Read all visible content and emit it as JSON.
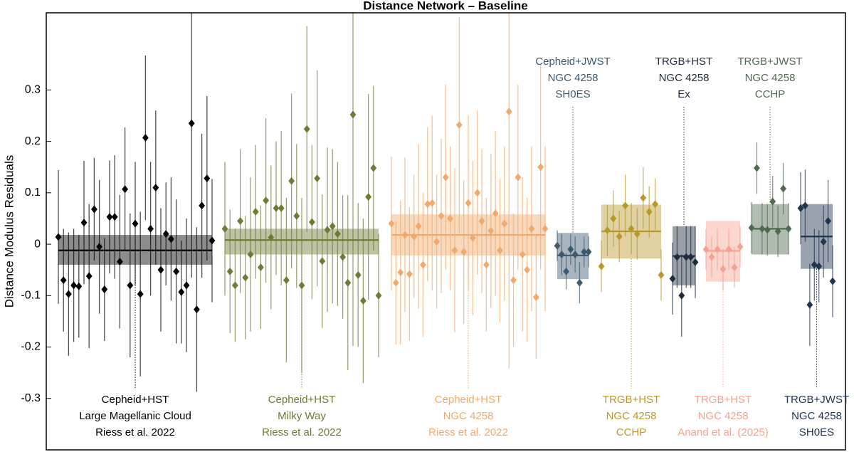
{
  "chart_data": {
    "type": "errorbar",
    "title": "Distance Network – Baseline",
    "ylabel": "Distance Modulus Residuals",
    "ylim": [
      -0.4,
      0.45
    ],
    "yticks": [
      -0.3,
      -0.2,
      -0.1,
      0,
      0.1,
      0.2,
      0.3
    ],
    "groups": [
      {
        "label": [
          "Cepheid+HST",
          "Large Magellanic Cloud",
          "Riess et al. 2022"
        ],
        "label_position": "bottom",
        "color": "#000000",
        "mean": -0.012,
        "band": [
          -0.04,
          0.018
        ],
        "values": [
          0.014,
          -0.07,
          -0.097,
          -0.08,
          -0.082,
          0.042,
          -0.062,
          0.068,
          -0.005,
          -0.088,
          0.053,
          0.053,
          -0.034,
          0.107,
          -0.08,
          0.04,
          -0.097,
          0.207,
          0.03,
          0.11,
          -0.05,
          0.02,
          0.01,
          -0.053,
          -0.093,
          -0.08,
          0.235,
          -0.127,
          0.075,
          0.128,
          0.007
        ],
        "errors": [
          0.13,
          0.1,
          0.12,
          0.11,
          0.1,
          0.12,
          0.14,
          0.1,
          0.13,
          0.1,
          0.11,
          0.12,
          0.13,
          0.12,
          0.14,
          0.12,
          0.16,
          0.16,
          0.13,
          0.15,
          0.12,
          0.1,
          0.12,
          0.14,
          0.1,
          0.13,
          0.3,
          0.16,
          0.14,
          0.16,
          0.12
        ]
      },
      {
        "label": [
          "Cepheid+HST",
          "Milky Way",
          "Riess et al. 2022"
        ],
        "label_position": "bottom",
        "color": "#6e7b36",
        "mean": 0.008,
        "band": [
          -0.02,
          0.03
        ],
        "values": [
          0.03,
          -0.053,
          -0.08,
          0.045,
          -0.065,
          -0.02,
          0.063,
          -0.045,
          0.085,
          0.013,
          0.07,
          0.07,
          -0.07,
          0.123,
          0.055,
          -0.08,
          0.224,
          0.043,
          0.128,
          -0.033,
          0.028,
          0.035,
          0.02,
          -0.025,
          -0.075,
          0.252,
          -0.06,
          -0.11,
          0.092,
          0.148,
          -0.1
        ],
        "errors": [
          0.13,
          0.12,
          0.11,
          0.14,
          0.12,
          0.15,
          0.13,
          0.12,
          0.16,
          0.14,
          0.13,
          0.15,
          0.16,
          0.17,
          0.14,
          0.17,
          0.2,
          0.15,
          0.21,
          0.13,
          0.16,
          0.15,
          0.14,
          0.12,
          0.17,
          0.45,
          0.14,
          0.16,
          0.2,
          0.16,
          0.12
        ]
      },
      {
        "label": [
          "Cepheid+HST",
          "NGC 4258",
          "Riess et al. 2022"
        ],
        "label_position": "bottom",
        "color": "#f0aa6c",
        "mean": 0.018,
        "band": [
          -0.022,
          0.058
        ],
        "values": [
          0.04,
          -0.075,
          -0.055,
          0.018,
          -0.058,
          0.015,
          0.035,
          -0.04,
          0.078,
          0.08,
          0.005,
          0.055,
          0.13,
          0.05,
          -0.012,
          0.232,
          -0.015,
          0.08,
          0.012,
          0.1,
          0.045,
          -0.04,
          0.026,
          0.06,
          -0.012,
          0.04,
          0.258,
          -0.07,
          0.13,
          -0.02,
          -0.05,
          0.03,
          -0.103,
          0.15,
          0.03
        ],
        "errors": [
          0.13,
          0.12,
          0.14,
          0.15,
          0.13,
          0.12,
          0.16,
          0.14,
          0.15,
          0.17,
          0.13,
          0.15,
          0.18,
          0.14,
          0.16,
          0.21,
          0.14,
          0.17,
          0.15,
          0.16,
          0.14,
          0.13,
          0.15,
          0.16,
          0.14,
          0.15,
          0.5,
          0.13,
          0.18,
          0.15,
          0.14,
          0.16,
          0.12,
          0.2,
          0.16
        ]
      },
      {
        "label": [
          "Cepheid+JWST",
          "NGC 4258",
          "SH0ES"
        ],
        "label_position": "top",
        "color": "#3e5a6e",
        "mean": -0.022,
        "band": [
          -0.068,
          0.022
        ],
        "values": [
          -0.003,
          -0.02,
          -0.053,
          -0.01,
          -0.02,
          -0.075,
          -0.015,
          -0.015
        ],
        "errors": [
          0.03,
          0.04,
          0.035,
          0.03,
          0.035,
          0.04,
          0.03,
          0.03
        ]
      },
      {
        "label": [
          "TRGB+HST",
          "NGC 4258",
          "CCHP"
        ],
        "label_position": "bottom",
        "color": "#b8982c",
        "mean": 0.025,
        "band": [
          -0.028,
          0.077
        ],
        "values": [
          -0.043,
          0.027,
          0.05,
          0.015,
          0.075,
          0.03,
          0.02,
          0.09,
          0.063,
          0.078,
          -0.06
        ],
        "errors": [
          0.05,
          0.05,
          0.055,
          0.05,
          0.06,
          0.05,
          0.05,
          0.06,
          0.05,
          0.05,
          0.05
        ]
      },
      {
        "label": [
          "TRGB+HST",
          "NGC 4258",
          "Ex"
        ],
        "label_position": "top",
        "color": "#1f2c3e",
        "mean": -0.023,
        "band": [
          -0.08,
          0.035
        ],
        "values": [
          -0.067,
          -0.025,
          -0.1,
          -0.025,
          -0.025,
          -0.035
        ],
        "errors": [
          0.07,
          0.06,
          0.08,
          0.06,
          0.06,
          0.07
        ]
      },
      {
        "label": [
          "TRGB+HST",
          "NGC 4258",
          "Anand et al. (2025)"
        ],
        "label_position": "bottom",
        "color": "#f4a391",
        "mean": -0.013,
        "band": [
          -0.073,
          0.045
        ],
        "values": [
          -0.01,
          -0.025,
          -0.01,
          -0.048,
          -0.01,
          -0.045,
          -0.005
        ],
        "errors": [
          0.04,
          0.04,
          0.04,
          0.04,
          0.04,
          0.04,
          0.04
        ]
      },
      {
        "label": [
          "TRGB+JWST",
          "NGC 4258",
          "CCHP"
        ],
        "label_position": "top",
        "color": "#506b52",
        "mean": 0.03,
        "band": [
          -0.02,
          0.078
        ],
        "values": [
          0.032,
          0.148,
          0.03,
          0.028,
          0.083,
          0.025,
          0.108,
          0.03
        ],
        "errors": [
          0.05,
          0.05,
          0.05,
          0.05,
          0.05,
          0.05,
          0.05,
          0.05
        ]
      },
      {
        "label": [
          "TRGB+JWST",
          "NGC 4258",
          "SH0ES"
        ],
        "label_position": "bottom",
        "color": "#1f3550",
        "mean": 0.015,
        "band": [
          -0.048,
          0.078
        ],
        "values": [
          0.07,
          0.075,
          -0.118,
          -0.04,
          -0.043,
          0.005,
          0.045,
          -0.072
        ],
        "errors": [
          0.07,
          0.07,
          0.08,
          0.07,
          0.07,
          0.07,
          0.08,
          0.07
        ]
      }
    ]
  }
}
